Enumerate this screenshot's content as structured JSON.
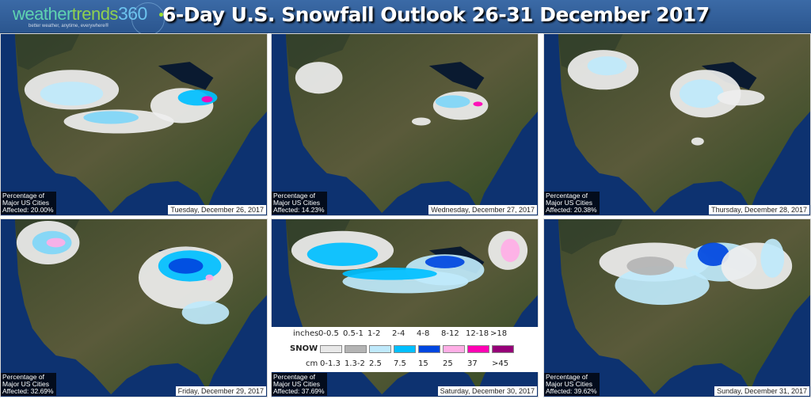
{
  "header": {
    "logo": {
      "word1": "weather",
      "word2": "trends",
      "num": "360",
      "tagline": "better weather, anytime, everywhere®"
    },
    "title": "6-Day U.S. Snowfall Outlook 26-31 December 2017"
  },
  "panels": [
    {
      "pct_label_1": "Percentage of",
      "pct_label_2": "Major US Cities",
      "affected": "Affected: 20.00%",
      "date": "Tuesday, December 26, 2017"
    },
    {
      "pct_label_1": "Percentage of",
      "pct_label_2": "Major US Cities",
      "affected": "Affected: 14.23%",
      "date": "Wednesday, December 27, 2017"
    },
    {
      "pct_label_1": "Percentage of",
      "pct_label_2": "Major US Cities",
      "affected": "Affected: 20.38%",
      "date": "Thursday, December 28, 2017"
    },
    {
      "pct_label_1": "Percentage of",
      "pct_label_2": "Major US Cities",
      "affected": "Affected: 32.69%",
      "date": "Friday, December 29, 2017"
    },
    {
      "pct_label_1": "Percentage of",
      "pct_label_2": "Major US Cities",
      "affected": "Affected: 37.69%",
      "date": "Saturday, December 30, 2017"
    },
    {
      "pct_label_1": "Percentage of",
      "pct_label_2": "Major US Cities",
      "affected": "Affected: 39.62%",
      "date": "Sunday, December 31, 2017"
    }
  ],
  "legend": {
    "inches_label": "inches",
    "snow_label": "SNOW",
    "cm_label": "cm",
    "inches": [
      "0-0.5",
      "0.5-1",
      "1-2",
      "2-4",
      "4-8",
      "8-12",
      "12-18",
      ">18"
    ],
    "cm": [
      "0-1.3",
      "1.3-2",
      "2.5",
      "7.5",
      "15",
      "25",
      "37",
      ">45"
    ],
    "colors": [
      "#e8e8e8",
      "#b4b4b4",
      "#bfe9fb",
      "#00bfff",
      "#0047e0",
      "#ffaee6",
      "#ff00b4",
      "#960078"
    ]
  }
}
